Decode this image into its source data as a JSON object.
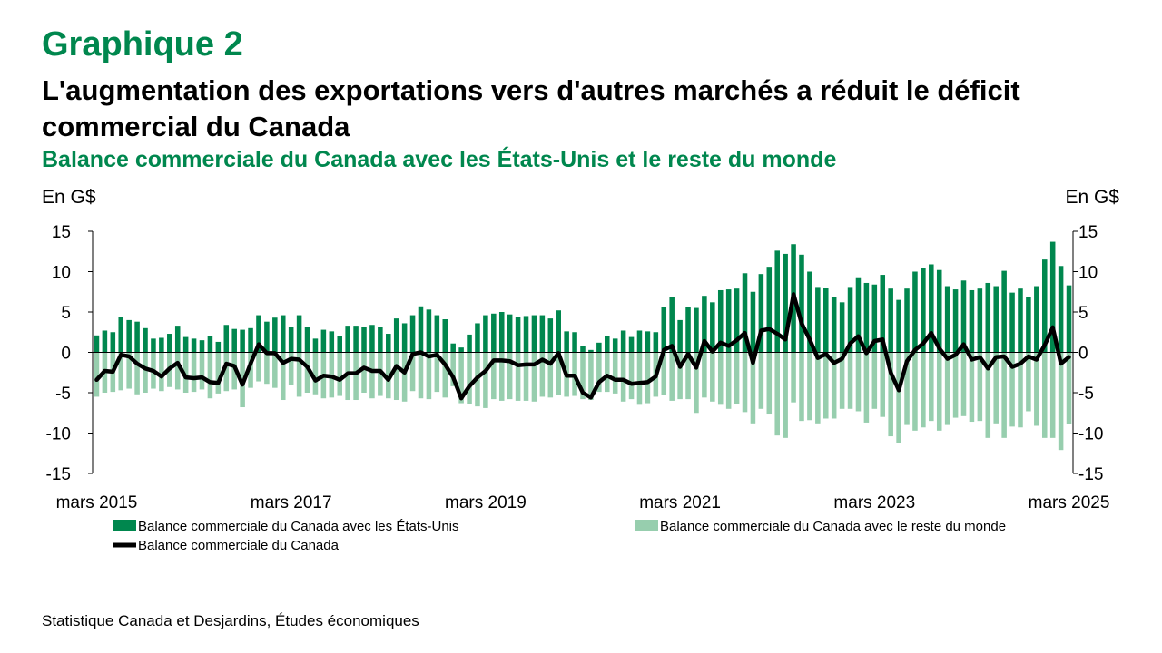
{
  "header": {
    "graph_number": "Graphique 2",
    "title": "L'augmentation des exportations vers d'autres marchés a réduit le déficit commercial du Canada",
    "subtitle": "Balance commerciale du Canada avec les États-Unis et le reste du monde",
    "unit_left": "En G$",
    "unit_right": "En G$"
  },
  "source": "Statistique Canada et Desjardins, Études économiques",
  "colors": {
    "us": "#00874E",
    "rest": "#97CEAE",
    "total": "#000000",
    "accent": "#00874E"
  },
  "chart_data": {
    "type": "bar",
    "start": "mars 2015",
    "end": "mars 2025",
    "frequency": "monthly",
    "ylim": [
      -15,
      15
    ],
    "yticks": [
      "15",
      "10",
      "5",
      "0",
      "-5",
      "-10",
      "-15"
    ],
    "ytick_values": [
      15,
      10,
      5,
      0,
      -5,
      -10,
      -15
    ],
    "xtick_labels": [
      "mars 2015",
      "mars 2017",
      "mars 2019",
      "mars 2021",
      "mars 2023",
      "mars 2025"
    ],
    "legend": {
      "us": "Balance commerciale du Canada avec les États-Unis",
      "rest": "Balance commerciale du Canada avec le reste du monde",
      "total": "Balance commerciale du Canada"
    },
    "series": [
      {
        "name": "Balance commerciale du Canada avec les États-Unis",
        "type": "bar",
        "values": [
          2.1,
          2.7,
          2.5,
          4.4,
          4.0,
          3.8,
          3.0,
          1.7,
          1.8,
          2.3,
          3.3,
          1.9,
          1.7,
          1.5,
          2.0,
          1.3,
          3.4,
          2.9,
          2.8,
          3.0,
          4.6,
          3.8,
          4.3,
          4.6,
          3.2,
          4.6,
          3.2,
          1.7,
          2.8,
          2.6,
          2.0,
          3.3,
          3.3,
          3.1,
          3.4,
          3.1,
          2.3,
          4.2,
          3.6,
          4.6,
          5.7,
          5.3,
          4.6,
          4.1,
          1.1,
          0.6,
          2.2,
          3.6,
          4.6,
          4.8,
          5.0,
          4.7,
          4.4,
          4.5,
          4.6,
          4.6,
          4.2,
          5.2,
          2.6,
          2.5,
          0.8,
          0.3,
          1.2,
          2.0,
          1.7,
          2.7,
          1.9,
          2.7,
          2.6,
          2.5,
          5.6,
          6.8,
          4.0,
          5.6,
          5.5,
          7.0,
          6.2,
          7.7,
          7.8,
          7.9,
          9.8,
          7.5,
          9.7,
          10.6,
          12.6,
          12.2,
          13.4,
          12.1,
          10.0,
          8.1,
          8.0,
          6.9,
          6.2,
          8.1,
          9.3,
          8.6,
          8.4,
          9.6,
          7.9,
          6.5,
          7.9,
          10.0,
          10.4,
          10.9,
          10.2,
          8.2,
          7.8,
          8.9,
          7.7,
          7.9,
          8.6,
          8.2,
          10.1,
          7.4,
          7.9,
          6.8,
          8.2,
          11.5,
          13.7,
          10.7,
          8.3
        ]
      },
      {
        "name": "Balance commerciale du Canada avec le reste du monde",
        "type": "bar",
        "values": [
          -5.5,
          -5.0,
          -4.9,
          -4.7,
          -4.5,
          -5.2,
          -5.0,
          -4.5,
          -4.8,
          -4.3,
          -4.6,
          -5.0,
          -4.9,
          -4.6,
          -5.7,
          -5.1,
          -4.8,
          -4.6,
          -6.8,
          -4.4,
          -3.6,
          -3.9,
          -4.4,
          -5.9,
          -4.0,
          -5.5,
          -5.0,
          -5.2,
          -5.7,
          -5.6,
          -5.4,
          -5.9,
          -5.9,
          -5.0,
          -5.7,
          -5.4,
          -5.7,
          -5.9,
          -6.1,
          -4.8,
          -5.7,
          -5.8,
          -4.9,
          -5.6,
          -4.2,
          -6.3,
          -6.4,
          -6.7,
          -6.9,
          -5.8,
          -6.0,
          -5.8,
          -6.0,
          -6.0,
          -6.1,
          -5.5,
          -5.6,
          -5.3,
          -5.5,
          -5.4,
          -5.8,
          -5.9,
          -4.9,
          -4.9,
          -5.1,
          -6.1,
          -5.8,
          -6.5,
          -6.3,
          -5.5,
          -5.3,
          -6.0,
          -5.8,
          -5.8,
          -7.5,
          -5.6,
          -6.1,
          -6.5,
          -7.0,
          -6.4,
          -7.4,
          -8.8,
          -7.0,
          -7.7,
          -10.3,
          -10.6,
          -6.2,
          -8.5,
          -8.4,
          -8.8,
          -8.2,
          -8.2,
          -7.0,
          -7.0,
          -7.3,
          -8.7,
          -7.0,
          -8.0,
          -10.4,
          -11.2,
          -9.0,
          -9.7,
          -9.3,
          -8.5,
          -9.7,
          -9.0,
          -8.1,
          -7.9,
          -8.6,
          -8.5,
          -10.6,
          -8.8,
          -10.6,
          -9.2,
          -9.3,
          -7.3,
          -9.1,
          -10.6,
          -10.6,
          -12.1,
          -8.9
        ]
      },
      {
        "name": "Balance commerciale du Canada",
        "type": "line",
        "values": [
          -3.4,
          -2.3,
          -2.4,
          -0.3,
          -0.5,
          -1.4,
          -2.0,
          -2.3,
          -3.0,
          -2.0,
          -1.3,
          -3.1,
          -3.2,
          -3.1,
          -3.7,
          -3.8,
          -1.4,
          -1.7,
          -4.0,
          -1.4,
          1.0,
          -0.1,
          -0.1,
          -1.3,
          -0.8,
          -0.9,
          -1.8,
          -3.5,
          -2.9,
          -3.0,
          -3.4,
          -2.6,
          -2.6,
          -1.9,
          -2.3,
          -2.3,
          -3.4,
          -1.7,
          -2.5,
          -0.2,
          0.0,
          -0.5,
          -0.3,
          -1.5,
          -3.1,
          -5.7,
          -4.2,
          -3.1,
          -2.3,
          -1.0,
          -1.0,
          -1.1,
          -1.6,
          -1.5,
          -1.5,
          -0.9,
          -1.4,
          -0.1,
          -2.9,
          -2.9,
          -5.0,
          -5.6,
          -3.7,
          -2.9,
          -3.4,
          -3.4,
          -3.9,
          -3.8,
          -3.7,
          -3.0,
          0.3,
          0.8,
          -1.8,
          -0.2,
          -1.9,
          1.4,
          0.1,
          1.2,
          0.8,
          1.5,
          2.4,
          -1.3,
          2.7,
          2.9,
          2.3,
          1.6,
          7.2,
          3.6,
          1.6,
          -0.7,
          -0.2,
          -1.3,
          -0.8,
          1.1,
          2.0,
          -0.1,
          1.4,
          1.6,
          -2.5,
          -4.7,
          -1.1,
          0.3,
          1.1,
          2.4,
          0.5,
          -0.8,
          -0.3,
          1.0,
          -0.9,
          -0.6,
          -2.0,
          -0.6,
          -0.5,
          -1.8,
          -1.4,
          -0.5,
          -0.9,
          0.9,
          3.1,
          -1.4,
          -0.6
        ]
      }
    ]
  }
}
